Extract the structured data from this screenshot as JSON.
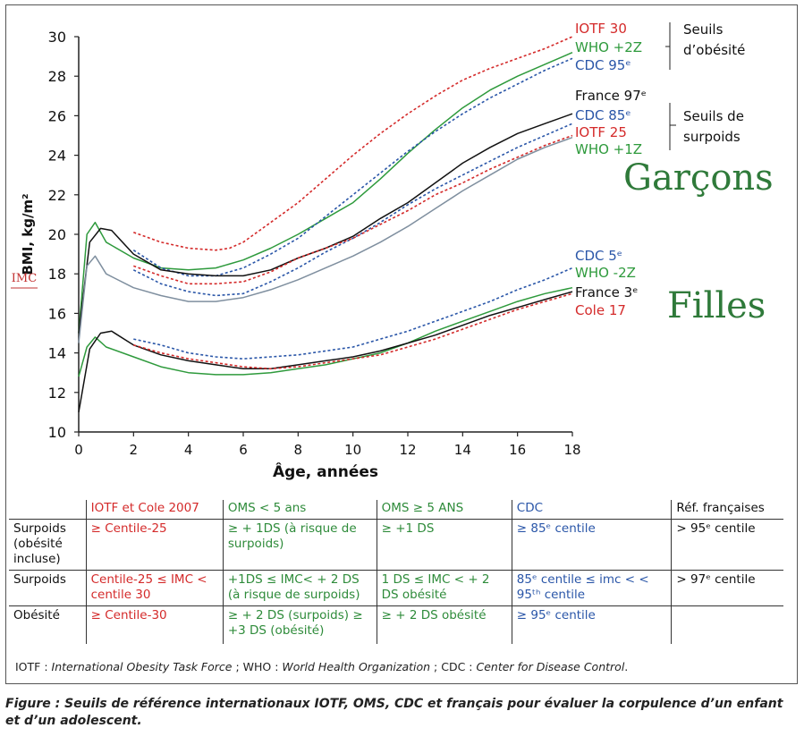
{
  "chart_data": {
    "type": "line",
    "xlabel": "Âge, années",
    "ylabel": "BMI, kg/m²",
    "ylabel_alt": "IMC",
    "xlim": [
      0,
      18
    ],
    "ylim": [
      10,
      30
    ],
    "xticks": [
      0,
      2,
      4,
      6,
      8,
      10,
      12,
      14,
      16,
      18
    ],
    "yticks": [
      10,
      12,
      14,
      16,
      18,
      20,
      22,
      24,
      26,
      28,
      30
    ],
    "groups": {
      "boys": "Garçons",
      "girls": "Filles"
    },
    "series": [
      {
        "name": "IOTF 30",
        "group": "boys",
        "color": "#d42a2a",
        "dash": true,
        "x": [
          2,
          3,
          4,
          5,
          5.5,
          6,
          7,
          8,
          9,
          10,
          11,
          12,
          13,
          14,
          15,
          16,
          17,
          18
        ],
        "y": [
          20.1,
          19.6,
          19.3,
          19.2,
          19.3,
          19.6,
          20.6,
          21.6,
          22.8,
          24.0,
          25.1,
          26.1,
          27.0,
          27.8,
          28.4,
          28.9,
          29.4,
          30.0
        ]
      },
      {
        "name": "WHO +2Z",
        "group": "boys",
        "color": "#2e9a3c",
        "dash": false,
        "x": [
          0,
          0.3,
          0.6,
          1,
          2,
          3,
          4,
          5,
          6,
          7,
          8,
          9,
          10,
          11,
          12,
          13,
          14,
          15,
          16,
          17,
          18
        ],
        "y": [
          15.0,
          20.0,
          20.6,
          19.6,
          18.8,
          18.3,
          18.2,
          18.3,
          18.7,
          19.3,
          20.0,
          20.8,
          21.6,
          22.8,
          24.1,
          25.3,
          26.4,
          27.3,
          28.0,
          28.6,
          29.2
        ]
      },
      {
        "name": "CDC 95e",
        "group": "boys",
        "color": "#2a56a8",
        "dash": true,
        "x": [
          2,
          3,
          4,
          5,
          6,
          7,
          8,
          9,
          10,
          11,
          12,
          13,
          14,
          15,
          16,
          17,
          18
        ],
        "y": [
          19.2,
          18.3,
          17.9,
          17.9,
          18.3,
          19.0,
          19.8,
          20.9,
          22.0,
          23.1,
          24.2,
          25.2,
          26.1,
          26.9,
          27.6,
          28.3,
          28.9
        ]
      },
      {
        "name": "France 97e",
        "group": "boys",
        "color": "#111111",
        "dash": false,
        "x": [
          0,
          0.4,
          0.8,
          1.2,
          2,
          3,
          4,
          5,
          6,
          7,
          8,
          9,
          10,
          11,
          12,
          13,
          14,
          15,
          16,
          17,
          18
        ],
        "y": [
          15.0,
          19.6,
          20.3,
          20.2,
          19.0,
          18.2,
          18.0,
          17.9,
          17.9,
          18.2,
          18.8,
          19.3,
          19.9,
          20.8,
          21.6,
          22.6,
          23.6,
          24.4,
          25.1,
          25.6,
          26.1
        ]
      },
      {
        "name": "CDC 85e",
        "group": "boys",
        "color": "#2a56a8",
        "dash": true,
        "x": [
          2,
          3,
          4,
          5,
          6,
          7,
          8,
          9,
          10,
          11,
          12,
          13,
          14,
          15,
          16,
          17,
          18
        ],
        "y": [
          18.2,
          17.5,
          17.1,
          16.9,
          17.0,
          17.6,
          18.3,
          19.1,
          19.8,
          20.6,
          21.5,
          22.3,
          23.0,
          23.7,
          24.4,
          25.0,
          25.6
        ]
      },
      {
        "name": "IOTF 25",
        "group": "boys",
        "color": "#d42a2a",
        "dash": true,
        "x": [
          2,
          3,
          4,
          5,
          6,
          7,
          8,
          9,
          10,
          11,
          12,
          13,
          14,
          15,
          16,
          17,
          18
        ],
        "y": [
          18.4,
          17.9,
          17.5,
          17.5,
          17.6,
          18.1,
          18.8,
          19.3,
          19.8,
          20.5,
          21.2,
          22.0,
          22.6,
          23.3,
          23.9,
          24.5,
          25.0
        ]
      },
      {
        "name": "WHO +1Z",
        "group": "boys",
        "color": "#7f8f9f",
        "dash": false,
        "x": [
          0,
          0.3,
          0.6,
          1,
          2,
          3,
          4,
          5,
          6,
          7,
          8,
          9,
          10,
          11,
          12,
          13,
          14,
          15,
          16,
          17,
          18
        ],
        "y": [
          14.5,
          18.4,
          18.9,
          18.0,
          17.3,
          16.9,
          16.6,
          16.6,
          16.8,
          17.2,
          17.7,
          18.3,
          18.9,
          19.6,
          20.4,
          21.3,
          22.2,
          23.0,
          23.8,
          24.4,
          24.9
        ]
      },
      {
        "name": "CDC 5e",
        "group": "girls",
        "color": "#2a56a8",
        "dash": true,
        "x": [
          2,
          3,
          4,
          5,
          6,
          7,
          8,
          9,
          10,
          11,
          12,
          13,
          14,
          15,
          16,
          17,
          18
        ],
        "y": [
          14.7,
          14.4,
          14.0,
          13.8,
          13.7,
          13.8,
          13.9,
          14.1,
          14.3,
          14.7,
          15.1,
          15.6,
          16.1,
          16.6,
          17.2,
          17.7,
          18.3
        ]
      },
      {
        "name": "WHO -2Z",
        "group": "girls",
        "color": "#2e9a3c",
        "dash": false,
        "x": [
          0,
          0.3,
          0.6,
          1,
          2,
          3,
          4,
          5,
          6,
          7,
          8,
          9,
          10,
          11,
          12,
          13,
          14,
          15,
          16,
          17,
          18
        ],
        "y": [
          12.8,
          14.3,
          14.8,
          14.3,
          13.8,
          13.3,
          13.0,
          12.9,
          12.9,
          13.0,
          13.2,
          13.4,
          13.7,
          14.0,
          14.5,
          15.1,
          15.6,
          16.1,
          16.6,
          17.0,
          17.3
        ]
      },
      {
        "name": "France 3e",
        "group": "girls",
        "color": "#111111",
        "dash": false,
        "x": [
          0,
          0.4,
          0.8,
          1.2,
          2,
          3,
          4,
          5,
          6,
          7,
          8,
          9,
          10,
          11,
          12,
          13,
          14,
          15,
          16,
          17,
          18
        ],
        "y": [
          11.0,
          14.2,
          15.0,
          15.1,
          14.4,
          13.9,
          13.6,
          13.4,
          13.2,
          13.2,
          13.4,
          13.6,
          13.8,
          14.1,
          14.5,
          14.9,
          15.4,
          15.9,
          16.3,
          16.7,
          17.1
        ]
      },
      {
        "name": "Cole 17",
        "group": "girls",
        "color": "#d42a2a",
        "dash": true,
        "x": [
          2,
          3,
          4,
          5,
          6,
          7,
          8,
          9,
          10,
          11,
          12,
          13,
          14,
          15,
          16,
          17,
          18
        ],
        "y": [
          14.4,
          14.0,
          13.7,
          13.5,
          13.3,
          13.2,
          13.3,
          13.5,
          13.7,
          13.9,
          14.3,
          14.7,
          15.2,
          15.7,
          16.2,
          16.6,
          17.0
        ]
      }
    ],
    "legend_labels": [
      {
        "text": "IOTF 30",
        "color": "#d42a2a"
      },
      {
        "text": "WHO +2Z",
        "color": "#2e9a3c"
      },
      {
        "text": "CDC 95ᵉ",
        "color": "#2a56a8"
      },
      {
        "text": "France 97ᵉ",
        "color": "#111111"
      },
      {
        "text": "CDC 85ᵉ",
        "color": "#2a56a8"
      },
      {
        "text": "IOTF 25",
        "color": "#d42a2a"
      },
      {
        "text": "WHO +1Z",
        "color": "#2e9a3c"
      },
      {
        "text": "CDC 5ᵉ",
        "color": "#2a56a8"
      },
      {
        "text": "WHO -2Z",
        "color": "#2e9a3c"
      },
      {
        "text": "France 3ᵉ",
        "color": "#111111"
      },
      {
        "text": "Cole 17",
        "color": "#d42a2a"
      }
    ],
    "bracket_labels": {
      "obesity_1": "Seuils",
      "obesity_2": "d’obésité",
      "overweight_1": "Seuils de",
      "overweight_2": "surpoids"
    }
  },
  "table": {
    "headers": [
      "",
      "IOTF et Cole 2007",
      "OMS < 5 ans",
      "OMS ≥ 5 ANS",
      "CDC",
      "Réf. françaises"
    ],
    "rows": [
      [
        "Surpoids (obésité incluse)",
        "≥ Centile-25",
        "≥ + 1DS (à risque de surpoids)",
        "≥ +1 DS",
        "≥ 85ᵉ centile",
        "> 95ᵉ centile"
      ],
      [
        "Surpoids",
        "Centile-25 ≤ IMC < centile 30",
        "+1DS ≤ IMC< + 2 DS (à risque de surpoids)",
        "1 DS ≤ IMC < + 2 DS obésité",
        "85ᵉ centile ≤ imc < < 95ᵗʰ centile",
        "> 97ᵉ centile"
      ],
      [
        "Obésité",
        "≥ Centile-30",
        "≥ + 2 DS (surpoids) ≥ +3 DS (obésité)",
        "≥ + 2 DS obésité",
        "≥ 95ᵉ centile",
        ""
      ]
    ]
  },
  "footnote": {
    "p1": "IOTF : ",
    "i1": "International Obesity Task Force",
    "p2": " ; WHO : ",
    "i2": "World Health Organization",
    "p3": " ; CDC : ",
    "i3": "Center for Disease Control",
    "p4": "."
  },
  "caption": "Figure   : Seuils de référence internationaux IOTF, OMS, CDC et français pour évaluer la corpulence d’un enfant et d’un adolescent."
}
